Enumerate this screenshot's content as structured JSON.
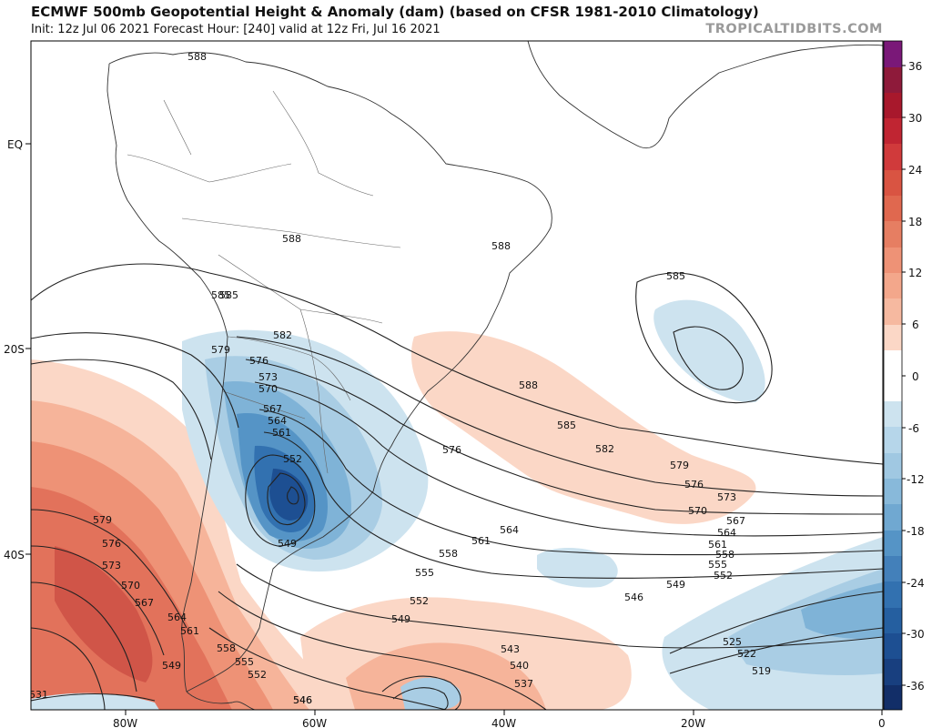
{
  "header": {
    "title": "ECMWF 500mb Geopotential Height & Anomaly (dam) (based on CFSR 1981-2010 Climatology)",
    "subtitle": "Init: 12z Jul 06 2021   Forecast Hour: [240]   valid at 12z Fri, Jul 16 2021",
    "credit": "TROPICALTIDBITS.COM"
  },
  "axes": {
    "lon_labels": [
      "80W",
      "60W",
      "40W",
      "20W",
      "0"
    ],
    "lat_labels": [
      "EQ",
      "20S",
      "40S"
    ]
  },
  "colorbar": {
    "tick_labels": [
      "36",
      "30",
      "24",
      "18",
      "12",
      "6",
      "0",
      "-6",
      "-12",
      "-18",
      "-24",
      "-30",
      "-36"
    ]
  },
  "contour_labels": [
    "588",
    "588",
    "588",
    "585",
    "585",
    "582",
    "579",
    "576",
    "573",
    "570",
    "567",
    "564",
    "561",
    "552",
    "549",
    "585",
    "588",
    "576",
    "585",
    "582",
    "579",
    "576",
    "573",
    "570",
    "567",
    "564",
    "561",
    "558",
    "555",
    "552",
    "549",
    "546",
    "564",
    "561",
    "558",
    "555",
    "552",
    "549",
    "546",
    "543",
    "540",
    "537",
    "525",
    "522",
    "519",
    "579",
    "576",
    "573",
    "570",
    "567",
    "564",
    "561",
    "558",
    "555",
    "552",
    "549",
    "546",
    "531"
  ],
  "colors": {
    "coast": "#333333",
    "contour": "#222222",
    "pos_1": "#fbd7c6",
    "pos_2": "#f6b49a",
    "pos_3": "#ee9276",
    "pos_4": "#e2725b",
    "pos_5": "#d05548",
    "neg_1": "#cde3ef",
    "neg_2": "#a9cde4",
    "neg_3": "#7fb3d7",
    "neg_4": "#5594c6",
    "neg_5": "#3271b0",
    "neg_6": "#1d4f92"
  }
}
